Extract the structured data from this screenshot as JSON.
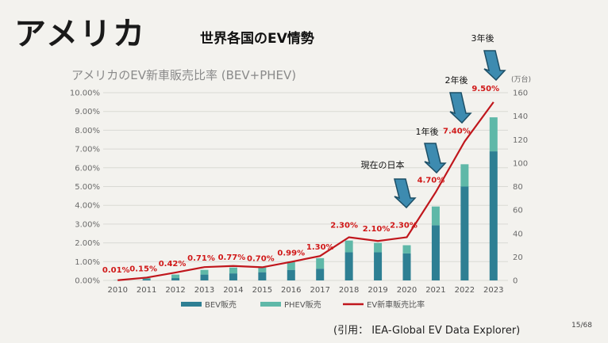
{
  "slide": {
    "title": "アメリカ",
    "subtitle": "世界各国のEV情勢",
    "citation": "(引用： IEA-Global EV Data Explorer)",
    "page": "15/68"
  },
  "annotations": {
    "current_japan": "現在の日本",
    "one_year": "1年後",
    "two_year": "2年後",
    "three_year": "3年後"
  },
  "colors": {
    "bev": "#2e7f93",
    "phev": "#5fb8a8",
    "line": "#c0161c",
    "label": "#d01818",
    "arrow": "#3d8bb0"
  },
  "chart_data": {
    "type": "bar",
    "title": "アメリカのEV新車販売比率 (BEV+PHEV)",
    "right_axis_unit": "(万台)",
    "categories": [
      "2010",
      "2011",
      "2012",
      "2013",
      "2014",
      "2015",
      "2016",
      "2017",
      "2018",
      "2019",
      "2020",
      "2021",
      "2022",
      "2023"
    ],
    "series": [
      {
        "name": "BEV販売",
        "axis": "right",
        "values": [
          0.1,
          1,
          2,
          5,
          6,
          7,
          9,
          10,
          24,
          24,
          23,
          47,
          80,
          110
        ]
      },
      {
        "name": "PHEV販売",
        "axis": "right",
        "values": [
          0.2,
          1,
          3,
          4,
          5,
          4,
          7,
          9,
          10,
          8,
          7,
          16,
          19,
          29
        ]
      },
      {
        "name": "EV新車販売比率",
        "axis": "left",
        "type": "line",
        "values": [
          0.01,
          0.15,
          0.42,
          0.71,
          0.77,
          0.7,
          0.99,
          1.3,
          2.3,
          2.1,
          2.3,
          4.7,
          7.4,
          9.5
        ],
        "labels": [
          "0.01%",
          "0.15%",
          "0.42%",
          "0.71%",
          "0.77%",
          "0.70%",
          "0.99%",
          "1.30%",
          "2.30%",
          "2.10%",
          "2.30%",
          "4.70%",
          "7.40%",
          "9.50%"
        ]
      }
    ],
    "y_left_ticks": [
      "0.00%",
      "1.00%",
      "2.00%",
      "3.00%",
      "4.00%",
      "5.00%",
      "6.00%",
      "7.00%",
      "8.00%",
      "9.00%",
      "10.00%"
    ],
    "y_left_lim": [
      0,
      10
    ],
    "y_right_ticks": [
      "0",
      "20",
      "40",
      "60",
      "80",
      "100",
      "120",
      "140",
      "160"
    ],
    "y_right_lim": [
      0,
      160
    ],
    "legend": [
      "BEV販売",
      "PHEV販売",
      "EV新車販売比率"
    ],
    "legend_position": "bottom",
    "grid": true
  }
}
